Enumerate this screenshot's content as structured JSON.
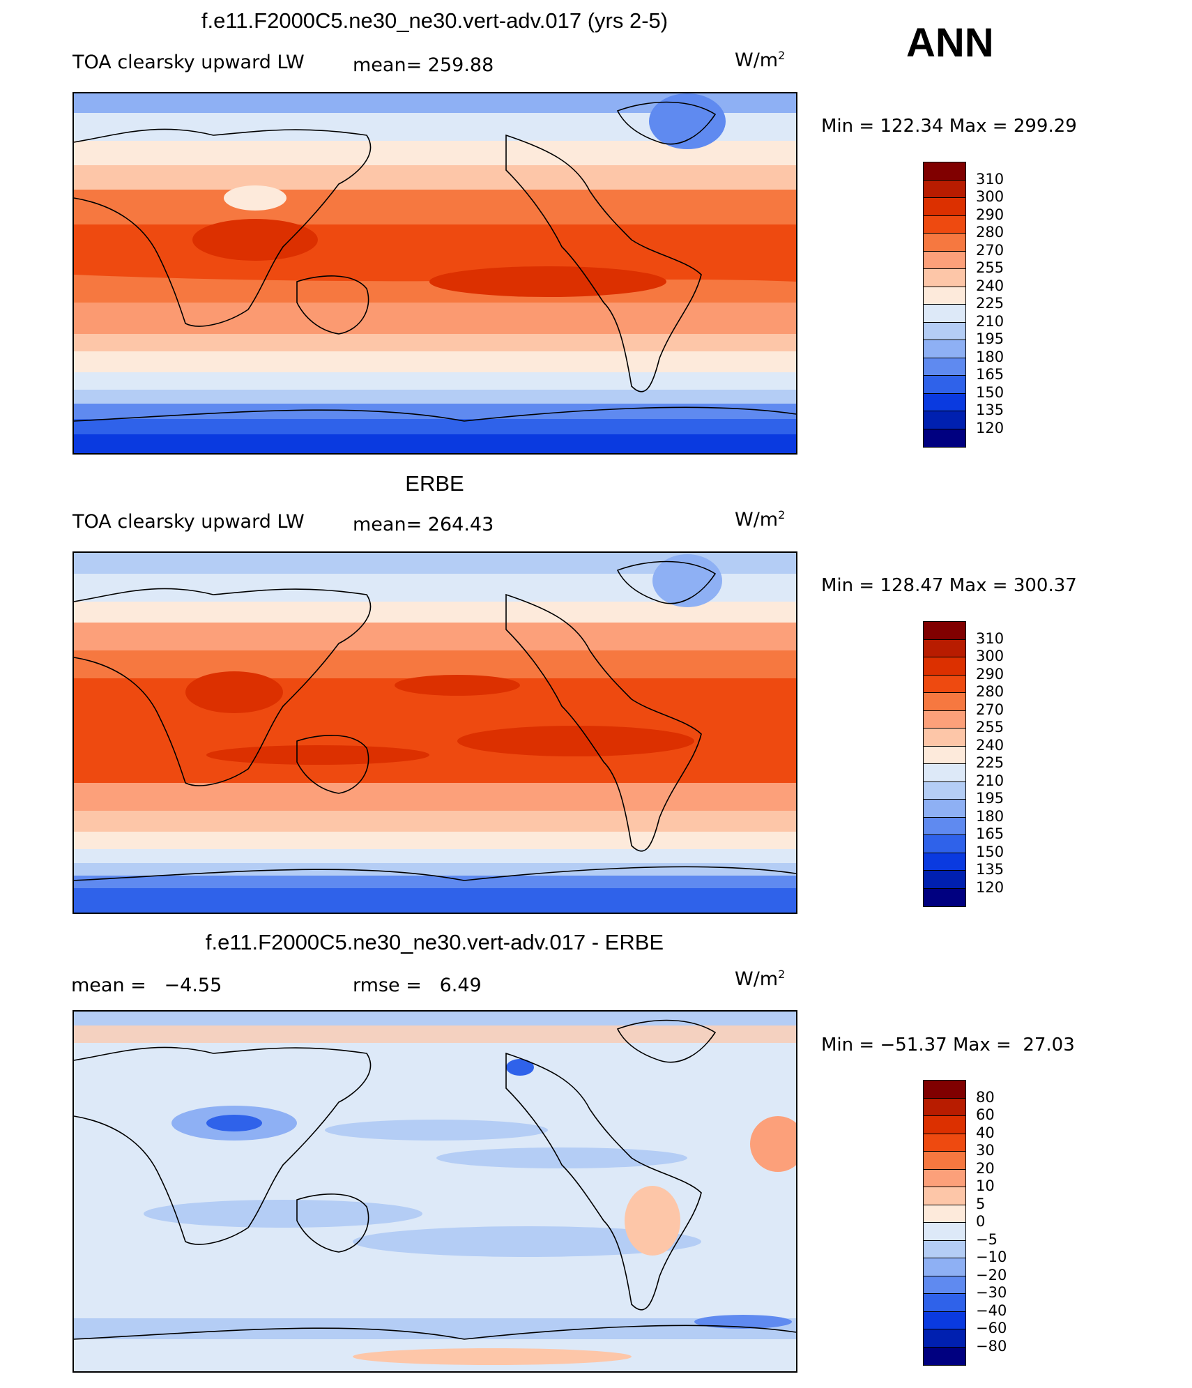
{
  "season": "ANN",
  "panels": [
    {
      "title": "f.e11.F2000C5.ne30_ne30.vert-adv.017 (yrs 2-5)",
      "left_label": "TOA clearsky upward LW",
      "stat_label": "mean=",
      "stat_value": "259.88",
      "units_main": "W/m",
      "units_exp": "2",
      "min_label": "Min",
      "min_value": "122.34",
      "max_label": "Max",
      "max_value": "299.29",
      "levels": [
        "310",
        "300",
        "290",
        "280",
        "270",
        "255",
        "240",
        "225",
        "210",
        "195",
        "180",
        "165",
        "150",
        "135",
        "120"
      ],
      "colors": [
        "#800000",
        "#b81c00",
        "#dc3000",
        "#ee4a10",
        "#f67840",
        "#fca07a",
        "#fdc6a8",
        "#fdeadb",
        "#dde9f8",
        "#b4cdf5",
        "#8eb0f4",
        "#5f8af0",
        "#2f62ea",
        "#0a3ae0",
        "#0020b0",
        "#000080"
      ]
    },
    {
      "title": "ERBE",
      "left_label": "TOA clearsky upward LW",
      "stat_label": "mean=",
      "stat_value": "264.43",
      "units_main": "W/m",
      "units_exp": "2",
      "min_label": "Min",
      "min_value": "128.47",
      "max_label": "Max",
      "max_value": "300.37",
      "levels": [
        "310",
        "300",
        "290",
        "280",
        "270",
        "255",
        "240",
        "225",
        "210",
        "195",
        "180",
        "165",
        "150",
        "135",
        "120"
      ],
      "colors": [
        "#800000",
        "#b81c00",
        "#dc3000",
        "#ee4a10",
        "#f67840",
        "#fca07a",
        "#fdc6a8",
        "#fdeadb",
        "#dde9f8",
        "#b4cdf5",
        "#8eb0f4",
        "#5f8af0",
        "#2f62ea",
        "#0a3ae0",
        "#0020b0",
        "#000080"
      ]
    },
    {
      "title": "f.e11.F2000C5.ne30_ne30.vert-adv.017 - ERBE",
      "mean_label": "mean =",
      "mean_value": "−4.55",
      "rmse_label": "rmse =",
      "rmse_value": "6.49",
      "units_main": "W/m",
      "units_exp": "2",
      "min_label": "Min",
      "min_value": "−51.37",
      "max_label": "Max",
      "max_value": "27.03",
      "levels": [
        "80",
        "60",
        "40",
        "30",
        "20",
        "10",
        "5",
        "0",
        "−5",
        "−10",
        "−20",
        "−30",
        "−40",
        "−60",
        "−80"
      ],
      "colors": [
        "#800000",
        "#b81c00",
        "#dc3000",
        "#ee4a10",
        "#f67840",
        "#fca07a",
        "#fdc6a8",
        "#fdeadb",
        "#dde9f8",
        "#b4cdf5",
        "#8eb0f4",
        "#5f8af0",
        "#2f62ea",
        "#0a3ae0",
        "#0020b0",
        "#000080"
      ]
    }
  ]
}
